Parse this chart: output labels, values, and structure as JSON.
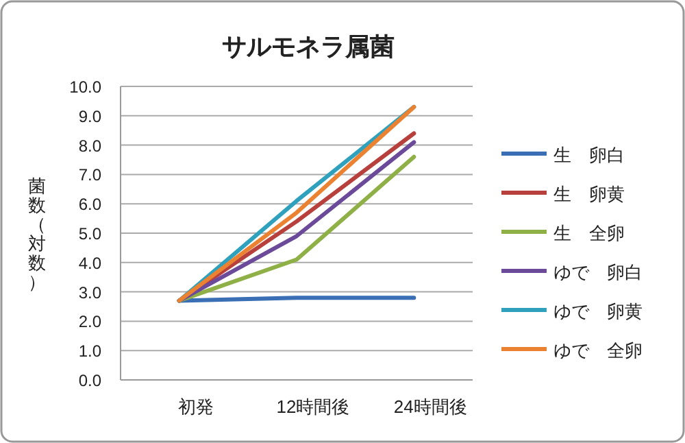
{
  "chart_data": {
    "type": "line",
    "title": "サルモネラ属菌",
    "ylabel": "菌数（対数）",
    "categories": [
      "初発",
      "12時間後",
      "24時間後"
    ],
    "ylim": [
      0,
      10
    ],
    "yticks": [
      {
        "value": 0,
        "label": "0.0"
      },
      {
        "value": 1,
        "label": "1.0"
      },
      {
        "value": 2,
        "label": "2.0"
      },
      {
        "value": 3,
        "label": "3.0"
      },
      {
        "value": 4,
        "label": "4.0"
      },
      {
        "value": 5,
        "label": "5.0"
      },
      {
        "value": 6,
        "label": "6.0"
      },
      {
        "value": 7,
        "label": "7.0"
      },
      {
        "value": 8,
        "label": "8.0"
      },
      {
        "value": 9,
        "label": "9.0"
      },
      {
        "value": 10,
        "label": "10.0"
      }
    ],
    "grid": "y",
    "legend": "right",
    "marker": "none",
    "line_style": "solid",
    "series": [
      {
        "name": "生　卵白",
        "color": "#3a6fb5",
        "values": [
          2.7,
          2.8,
          2.8
        ]
      },
      {
        "name": "生　卵黄",
        "color": "#b8403c",
        "values": [
          2.7,
          5.4,
          8.4
        ]
      },
      {
        "name": "生　全卵",
        "color": "#8fb046",
        "values": [
          2.7,
          4.1,
          7.6
        ]
      },
      {
        "name": "ゆで　卵白",
        "color": "#6c4a9a",
        "values": [
          2.7,
          4.9,
          8.1
        ]
      },
      {
        "name": "ゆで　卵黄",
        "color": "#2fa1bd",
        "values": [
          2.7,
          6.1,
          9.3
        ]
      },
      {
        "name": "ゆで　全卵",
        "color": "#ea8232",
        "values": [
          2.7,
          5.7,
          9.3
        ]
      }
    ]
  }
}
